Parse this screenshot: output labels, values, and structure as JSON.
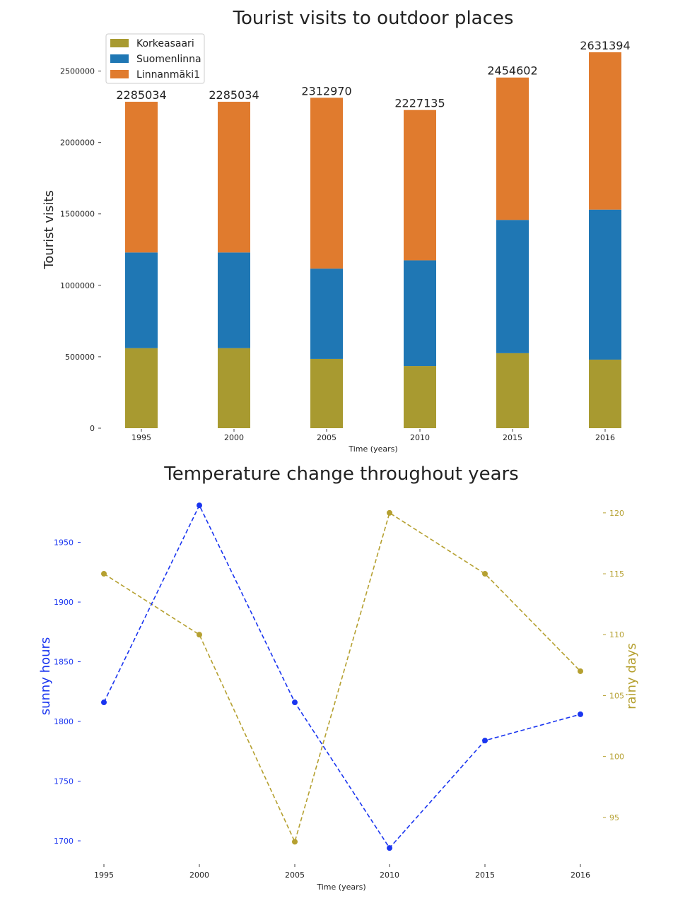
{
  "chart_data": [
    {
      "type": "bar",
      "stacked": true,
      "title": "Tourist visits to outdoor places",
      "xlabel": "Time (years)",
      "ylabel": "Tourist visits",
      "categories": [
        "1995",
        "2000",
        "2005",
        "2010",
        "2015",
        "2016"
      ],
      "series": [
        {
          "name": "Korkeasaari",
          "color": "#a89a30",
          "values": [
            560000,
            560000,
            485000,
            435000,
            525000,
            480000
          ]
        },
        {
          "name": "Suomenlinna",
          "color": "#1f77b4",
          "values": [
            670000,
            670000,
            632000,
            740000,
            933000,
            1050000
          ]
        },
        {
          "name": "Linnanmäki1",
          "color": "#e07b2e",
          "values": [
            1055034,
            1055034,
            1195970,
            1052135,
            996602,
            1101394
          ]
        }
      ],
      "totals": [
        2285034,
        2285034,
        2312970,
        2227135,
        2454602,
        2631394
      ],
      "total_labels": [
        "2285034",
        "2285034",
        "2312970",
        "2227135",
        "2454602",
        "2631394"
      ],
      "yticks": [
        0,
        500000,
        1000000,
        1500000,
        2000000,
        2500000
      ],
      "ytick_labels": [
        "0",
        "500000",
        "1000000",
        "1500000",
        "2000000",
        "2500000"
      ],
      "ylim": [
        0,
        2760000
      ],
      "legend_position": "top-left",
      "grid": false
    },
    {
      "type": "line",
      "title": "Temperature change throughout years",
      "xlabel": "Time (years)",
      "x": [
        "1995",
        "2000",
        "2005",
        "2010",
        "2015",
        "2016"
      ],
      "y_left": {
        "label": "sunny hours",
        "color": "#1a35f0",
        "values": [
          1816,
          1981,
          1816,
          1694,
          1784,
          1806
        ],
        "ticks": [
          1700,
          1750,
          1800,
          1850,
          1900,
          1950
        ],
        "tick_labels": [
          "1700",
          "1750",
          "1800",
          "1850",
          "1900",
          "1950"
        ],
        "ylim": [
          1687,
          1990
        ]
      },
      "y_right": {
        "label": "rainy days",
        "color": "#b5a030",
        "values": [
          115,
          110,
          93,
          120,
          115,
          107
        ],
        "ticks": [
          95,
          100,
          105,
          110,
          115,
          120
        ],
        "tick_labels": [
          "95",
          "100",
          "105",
          "110",
          "115",
          "120"
        ],
        "ylim": [
          91.8,
          121.5
        ]
      },
      "line_style": "dashed",
      "grid": false
    }
  ]
}
